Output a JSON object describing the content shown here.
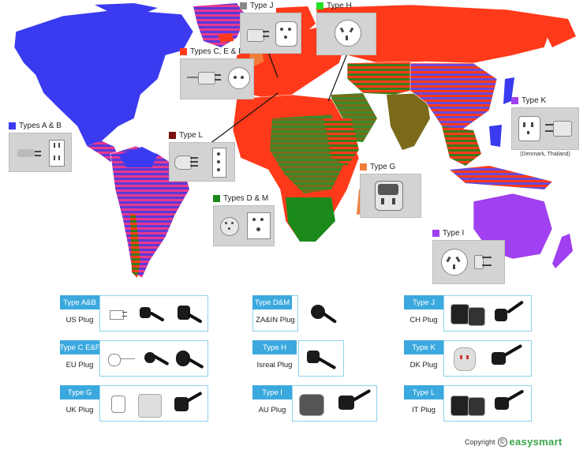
{
  "colors": {
    "type_ab": "#3a3af0",
    "type_cef": "#ff3a1a",
    "type_dm": "#1b8a1b",
    "type_g": "#f07e3b",
    "type_h": "#22e022",
    "type_i": "#a040f0",
    "type_j": "#888888",
    "type_k": "#a040f0",
    "type_l": "#7a1010",
    "card_tab": "#3ba9de",
    "card_border": "#8fd0ee",
    "brand": "#3aa64a"
  },
  "map_callouts": {
    "ab": {
      "label": "Types A & B",
      "icon": "us-plug-socket-icon"
    },
    "cef": {
      "label": "Types C, E & F",
      "icon": "eu-plug-socket-icon"
    },
    "j": {
      "label": "Type J",
      "icon": "swiss-plug-socket-icon"
    },
    "h": {
      "label": "Type H",
      "icon": "israel-socket-icon"
    },
    "k": {
      "label": "Type K",
      "icon": "danish-plug-socket-icon",
      "note": "(Denmark, Thailand)"
    },
    "l": {
      "label": "Type L",
      "icon": "italian-plug-socket-icon"
    },
    "g": {
      "label": "Type G",
      "icon": "uk-plug-icon"
    },
    "dm": {
      "label": "Types D & M",
      "icon": "indian-plug-socket-icon"
    },
    "i": {
      "label": "Type I",
      "icon": "au-socket-plug-icon"
    }
  },
  "cards": [
    {
      "tab": "Type A&B",
      "name": "US Plug"
    },
    {
      "tab": "Type D&M",
      "name": "ZA&IN Plug"
    },
    {
      "tab": "Type J",
      "name": "CH Plug"
    },
    {
      "tab": "Type C E&F",
      "name": "EU Plug"
    },
    {
      "tab": "Type H",
      "name": "Isreal Plug"
    },
    {
      "tab": "Type K",
      "name": "DK Plug"
    },
    {
      "tab": "Type G",
      "name": "UK Plug"
    },
    {
      "tab": "Type I",
      "name": "AU Plug"
    },
    {
      "tab": "Type L",
      "name": "IT Plug"
    }
  ],
  "footer": {
    "prefix": "Copyright",
    "symbol": "©",
    "brand": "easysmart"
  }
}
